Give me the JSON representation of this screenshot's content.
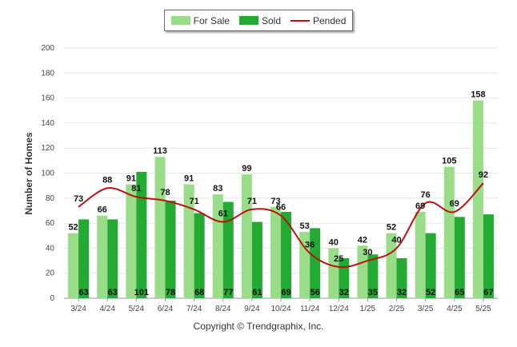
{
  "chart_data": {
    "type": "bar",
    "categories": [
      "3/24",
      "4/24",
      "5/24",
      "6/24",
      "7/24",
      "8/24",
      "9/24",
      "10/24",
      "11/24",
      "12/24",
      "1/25",
      "2/25",
      "3/25",
      "4/25",
      "5/25"
    ],
    "series": [
      {
        "name": "For Sale",
        "type": "bar",
        "color": "#99dd88",
        "values": [
          52,
          66,
          91,
          113,
          91,
          83,
          99,
          73,
          53,
          40,
          42,
          52,
          69,
          105,
          158
        ]
      },
      {
        "name": "Sold",
        "type": "bar",
        "color": "#22aa33",
        "values": [
          63,
          63,
          101,
          78,
          68,
          77,
          61,
          69,
          56,
          32,
          35,
          32,
          52,
          65,
          67
        ]
      },
      {
        "name": "Pended",
        "type": "line",
        "color": "#bb1111",
        "values": [
          73,
          88,
          81,
          78,
          71,
          61,
          71,
          66,
          36,
          25,
          30,
          40,
          76,
          69,
          92
        ]
      }
    ],
    "title": "",
    "xlabel": "",
    "ylabel": "Number of Homes",
    "ylim": [
      0,
      200
    ],
    "yticks": [
      0,
      20,
      40,
      60,
      80,
      100,
      120,
      140,
      160,
      180,
      200
    ],
    "grid": true,
    "legend_position": "top-center"
  },
  "legend": {
    "for_sale": "For Sale",
    "sold": "Sold",
    "pended": "Pended"
  },
  "copyright": "Copyright © Trendgraphix, Inc."
}
